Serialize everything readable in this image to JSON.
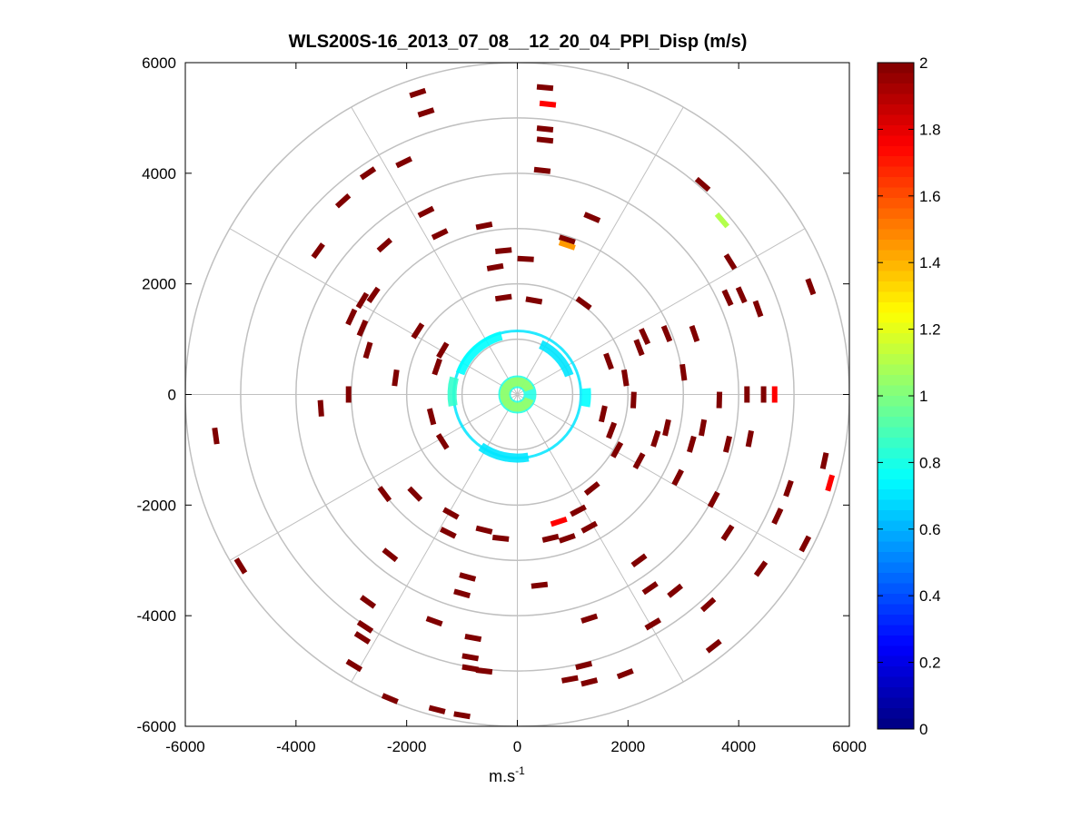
{
  "chart_data": {
    "type": "polar-scatter",
    "title": "WLS200S-16_2013_07_08__12_20_04_PPI_Disp (m/s)",
    "xlabel_base": "m.s",
    "xlabel_exp": "-1",
    "ylabel": "",
    "xlim": [
      -6000,
      6000
    ],
    "ylim": [
      -6000,
      6000
    ],
    "xticks": [
      -6000,
      -4000,
      -2000,
      0,
      2000,
      4000,
      6000
    ],
    "yticks": [
      -6000,
      -4000,
      -2000,
      0,
      2000,
      4000,
      6000
    ],
    "xtick_labels": [
      "-6000",
      "-4000",
      "-2000",
      "0",
      "2000",
      "4000",
      "6000"
    ],
    "ytick_labels": [
      "-6000",
      "-4000",
      "-2000",
      "0",
      "2000",
      "4000",
      "6000"
    ],
    "polar_grid": {
      "rings": [
        1000,
        2000,
        3000,
        4000,
        5000,
        6000
      ],
      "spoke_angles_deg": [
        0,
        30,
        60,
        90,
        120,
        150,
        180,
        210,
        240,
        270,
        300,
        330
      ]
    },
    "colorbar": {
      "label": "m/s",
      "range": [
        0,
        2
      ],
      "ticks": [
        0,
        0.2,
        0.4,
        0.6,
        0.8,
        1,
        1.2,
        1.4,
        1.6,
        1.8,
        2
      ],
      "tick_labels": [
        "0",
        "0.2",
        "0.4",
        "0.6",
        "0.8",
        "1",
        "1.2",
        "1.4",
        "1.6",
        "1.8",
        "2"
      ]
    },
    "near_rings": [
      {
        "radius": 230,
        "value": 0.8,
        "label": "inner-ring-center"
      },
      {
        "radius": 1150,
        "value": 0.7,
        "label": "ring-1150"
      }
    ],
    "near_arcs": [
      {
        "radius": 230,
        "from_deg": 20,
        "to_deg": 340,
        "value": 1.05
      },
      {
        "radius": 1100,
        "from_deg": 105,
        "to_deg": 160,
        "value": 0.75
      },
      {
        "radius": 1180,
        "from_deg": 165,
        "to_deg": 190,
        "value": 0.85
      },
      {
        "radius": 1000,
        "from_deg": 20,
        "to_deg": 65,
        "value": 0.7
      },
      {
        "radius": 1150,
        "from_deg": 235,
        "to_deg": 280,
        "value": 0.7
      },
      {
        "radius": 1250,
        "from_deg": 350,
        "to_deg": 365,
        "value": 0.75
      }
    ],
    "points": [
      {
        "x": 500,
        "y": 5550,
        "v": 2
      },
      {
        "x": 550,
        "y": 5250,
        "v": 1.75
      },
      {
        "x": 500,
        "y": 4800,
        "v": 2
      },
      {
        "x": 500,
        "y": 4600,
        "v": 2
      },
      {
        "x": 450,
        "y": 4050,
        "v": 2
      },
      {
        "x": -1800,
        "y": 5450,
        "v": 2
      },
      {
        "x": -1650,
        "y": 5100,
        "v": 2
      },
      {
        "x": -2700,
        "y": 4000,
        "v": 2
      },
      {
        "x": -2050,
        "y": 4200,
        "v": 2
      },
      {
        "x": -3150,
        "y": 3500,
        "v": 2
      },
      {
        "x": -3600,
        "y": 2600,
        "v": 2
      },
      {
        "x": -2400,
        "y": 2700,
        "v": 2
      },
      {
        "x": -1650,
        "y": 3300,
        "v": 2
      },
      {
        "x": -1400,
        "y": 2900,
        "v": 2
      },
      {
        "x": -600,
        "y": 3050,
        "v": 2
      },
      {
        "x": -250,
        "y": 2600,
        "v": 2
      },
      {
        "x": -400,
        "y": 2300,
        "v": 2
      },
      {
        "x": 150,
        "y": 2450,
        "v": 2
      },
      {
        "x": 1350,
        "y": 3200,
        "v": 2
      },
      {
        "x": 900,
        "y": 2800,
        "v": 2
      },
      {
        "x": 900,
        "y": 2700,
        "v": 1.45
      },
      {
        "x": 3350,
        "y": 3800,
        "v": 2
      },
      {
        "x": 3700,
        "y": 3150,
        "v": 1.1
      },
      {
        "x": 3850,
        "y": 2400,
        "v": 2
      },
      {
        "x": 5300,
        "y": 1950,
        "v": 2
      },
      {
        "x": 4050,
        "y": 1800,
        "v": 2
      },
      {
        "x": 3800,
        "y": 1750,
        "v": 2
      },
      {
        "x": 4350,
        "y": 1550,
        "v": 2
      },
      {
        "x": -2800,
        "y": 1700,
        "v": 2
      },
      {
        "x": -2600,
        "y": 1800,
        "v": 2
      },
      {
        "x": -3000,
        "y": 1400,
        "v": 2
      },
      {
        "x": -2800,
        "y": 1200,
        "v": 2
      },
      {
        "x": -2700,
        "y": 800,
        "v": 2
      },
      {
        "x": -2200,
        "y": 300,
        "v": 2
      },
      {
        "x": -3050,
        "y": 0,
        "v": 2
      },
      {
        "x": -3550,
        "y": -250,
        "v": 2
      },
      {
        "x": -5450,
        "y": -750,
        "v": 2
      },
      {
        "x": 4150,
        "y": 0,
        "v": 2
      },
      {
        "x": 4450,
        "y": 0,
        "v": 2
      },
      {
        "x": 4650,
        "y": 0,
        "v": 1.75
      },
      {
        "x": 3200,
        "y": 1100,
        "v": 2
      },
      {
        "x": 2700,
        "y": 1100,
        "v": 2
      },
      {
        "x": 2300,
        "y": 1050,
        "v": 2
      },
      {
        "x": 2200,
        "y": 850,
        "v": 2
      },
      {
        "x": 3000,
        "y": 400,
        "v": 2
      },
      {
        "x": 3650,
        "y": -100,
        "v": 2
      },
      {
        "x": 3350,
        "y": -600,
        "v": 2
      },
      {
        "x": 2700,
        "y": -600,
        "v": 2
      },
      {
        "x": 2500,
        "y": -800,
        "v": 2
      },
      {
        "x": 3150,
        "y": -900,
        "v": 2
      },
      {
        "x": 3800,
        "y": -900,
        "v": 2
      },
      {
        "x": 4200,
        "y": -800,
        "v": 2
      },
      {
        "x": 5550,
        "y": -1200,
        "v": 2
      },
      {
        "x": 5650,
        "y": -1600,
        "v": 1.75
      },
      {
        "x": 4900,
        "y": -1700,
        "v": 2
      },
      {
        "x": 4700,
        "y": -2200,
        "v": 2
      },
      {
        "x": 5200,
        "y": -2700,
        "v": 2
      },
      {
        "x": 4400,
        "y": -3150,
        "v": 2
      },
      {
        "x": 3800,
        "y": -2500,
        "v": 2
      },
      {
        "x": 3550,
        "y": -1900,
        "v": 2
      },
      {
        "x": 2900,
        "y": -1500,
        "v": 2
      },
      {
        "x": 2200,
        "y": -1200,
        "v": 2
      },
      {
        "x": 1800,
        "y": -1000,
        "v": 2
      },
      {
        "x": 1350,
        "y": -1700,
        "v": 2
      },
      {
        "x": 1100,
        "y": -2100,
        "v": 2
      },
      {
        "x": 1300,
        "y": -2400,
        "v": 2
      },
      {
        "x": 750,
        "y": -2300,
        "v": 1.75
      },
      {
        "x": 2200,
        "y": -3000,
        "v": 2
      },
      {
        "x": 2400,
        "y": -3500,
        "v": 2
      },
      {
        "x": 2850,
        "y": -3550,
        "v": 2
      },
      {
        "x": 3450,
        "y": -3800,
        "v": 2
      },
      {
        "x": 2450,
        "y": -4150,
        "v": 2
      },
      {
        "x": 3550,
        "y": -4550,
        "v": 2
      },
      {
        "x": 1300,
        "y": -4050,
        "v": 2
      },
      {
        "x": 1200,
        "y": -4900,
        "v": 2
      },
      {
        "x": 950,
        "y": -5150,
        "v": 2
      },
      {
        "x": 1300,
        "y": -5200,
        "v": 2
      },
      {
        "x": 1950,
        "y": -5050,
        "v": 2
      },
      {
        "x": 400,
        "y": -3450,
        "v": 2
      },
      {
        "x": -900,
        "y": -3300,
        "v": 2
      },
      {
        "x": -1000,
        "y": -3600,
        "v": 2
      },
      {
        "x": -1500,
        "y": -4100,
        "v": 2
      },
      {
        "x": -800,
        "y": -4400,
        "v": 2
      },
      {
        "x": -850,
        "y": -4750,
        "v": 2
      },
      {
        "x": -850,
        "y": -4950,
        "v": 2
      },
      {
        "x": -600,
        "y": -5000,
        "v": 2
      },
      {
        "x": -2300,
        "y": -2900,
        "v": 2
      },
      {
        "x": -2700,
        "y": -3750,
        "v": 2
      },
      {
        "x": -2750,
        "y": -4200,
        "v": 2
      },
      {
        "x": -2800,
        "y": -4400,
        "v": 2
      },
      {
        "x": -2950,
        "y": -4900,
        "v": 2
      },
      {
        "x": -2300,
        "y": -5500,
        "v": 2
      },
      {
        "x": -1450,
        "y": -5700,
        "v": 2
      },
      {
        "x": -1000,
        "y": -5800,
        "v": 2
      },
      {
        "x": -5000,
        "y": -3100,
        "v": 2
      },
      {
        "x": -1200,
        "y": -2150,
        "v": 2
      },
      {
        "x": -1850,
        "y": -1800,
        "v": 2
      },
      {
        "x": -2400,
        "y": -1800,
        "v": 2
      },
      {
        "x": -1250,
        "y": -2500,
        "v": 2
      },
      {
        "x": -600,
        "y": -2450,
        "v": 2
      },
      {
        "x": -300,
        "y": -2600,
        "v": 2
      },
      {
        "x": 600,
        "y": -2600,
        "v": 2
      },
      {
        "x": 900,
        "y": -2600,
        "v": 2
      },
      {
        "x": -1800,
        "y": 1150,
        "v": 2
      },
      {
        "x": -1350,
        "y": 800,
        "v": 2
      },
      {
        "x": -1450,
        "y": 500,
        "v": 2
      },
      {
        "x": 1950,
        "y": 300,
        "v": 2
      },
      {
        "x": 2100,
        "y": -100,
        "v": 2
      },
      {
        "x": 1650,
        "y": 600,
        "v": 2
      },
      {
        "x": 1550,
        "y": -350,
        "v": 2
      },
      {
        "x": 1700,
        "y": -650,
        "v": 2
      },
      {
        "x": -1550,
        "y": -400,
        "v": 2
      },
      {
        "x": -1350,
        "y": -850,
        "v": 2
      },
      {
        "x": 1200,
        "y": 1650,
        "v": 2
      },
      {
        "x": -250,
        "y": 1750,
        "v": 2
      },
      {
        "x": 300,
        "y": 1700,
        "v": 2
      }
    ]
  }
}
